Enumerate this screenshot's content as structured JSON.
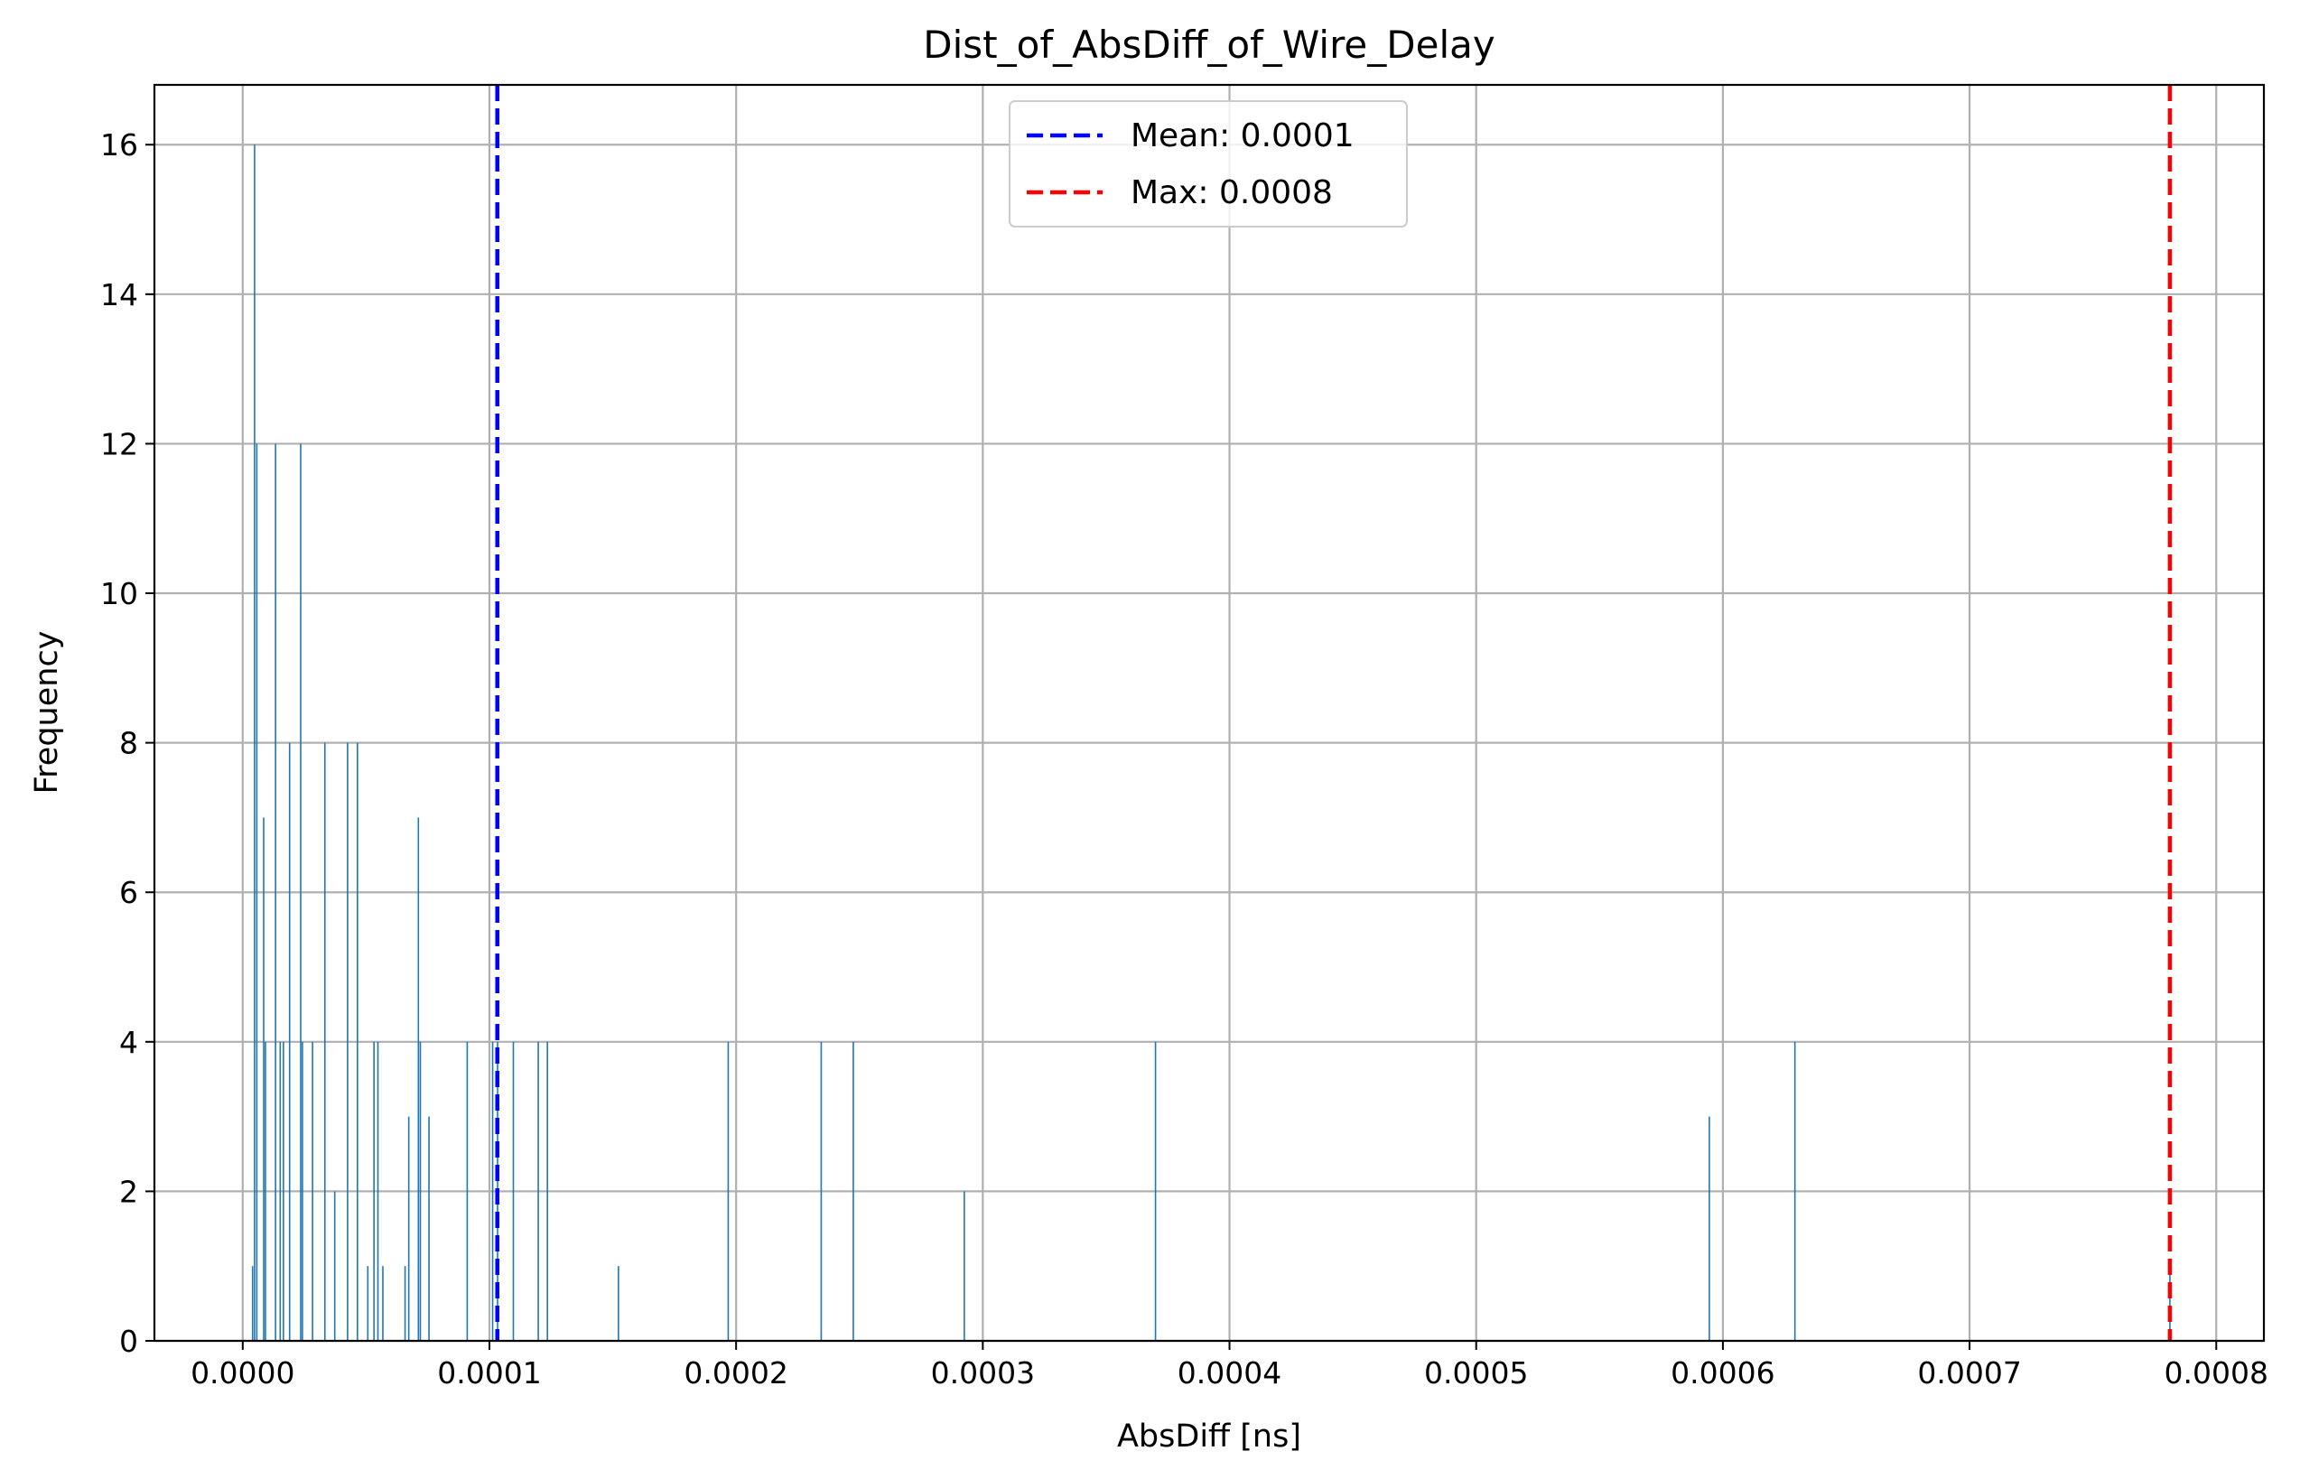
{
  "chart_data": {
    "type": "bar",
    "title": "Dist_of_AbsDiff_of_Wire_Delay",
    "xlabel": "AbsDiff [ns]",
    "ylabel": "Frequency",
    "xlim": [
      -3.58e-05,
      0.0008193
    ],
    "ylim": [
      0,
      16.8
    ],
    "grid": true,
    "legend_position": "upper-center",
    "bar_color": "#1f77b4",
    "x_ticks": [
      {
        "value": 0.0,
        "label": "0.0000"
      },
      {
        "value": 0.0001,
        "label": "0.0001"
      },
      {
        "value": 0.0002,
        "label": "0.0002"
      },
      {
        "value": 0.0003,
        "label": "0.0003"
      },
      {
        "value": 0.0004,
        "label": "0.0004"
      },
      {
        "value": 0.0005,
        "label": "0.0005"
      },
      {
        "value": 0.0006,
        "label": "0.0006"
      },
      {
        "value": 0.0007,
        "label": "0.0007"
      },
      {
        "value": 0.0008,
        "label": "0.0008"
      }
    ],
    "y_ticks": [
      {
        "value": 0,
        "label": "0"
      },
      {
        "value": 2,
        "label": "2"
      },
      {
        "value": 4,
        "label": "4"
      },
      {
        "value": 6,
        "label": "6"
      },
      {
        "value": 8,
        "label": "8"
      },
      {
        "value": 10,
        "label": "10"
      },
      {
        "value": 12,
        "label": "12"
      },
      {
        "value": 14,
        "label": "14"
      },
      {
        "value": 16,
        "label": "16"
      }
    ],
    "bars": [
      {
        "x": 4e-06,
        "count": 1
      },
      {
        "x": 4.8e-06,
        "count": 16
      },
      {
        "x": 5.7e-06,
        "count": 12
      },
      {
        "x": 8.5e-06,
        "count": 7
      },
      {
        "x": 9.2e-06,
        "count": 4
      },
      {
        "x": 1.33e-05,
        "count": 12
      },
      {
        "x": 1.52e-05,
        "count": 4
      },
      {
        "x": 1.65e-05,
        "count": 4
      },
      {
        "x": 1.9e-05,
        "count": 8
      },
      {
        "x": 2.35e-05,
        "count": 12
      },
      {
        "x": 2.42e-05,
        "count": 4
      },
      {
        "x": 2.83e-05,
        "count": 4
      },
      {
        "x": 3.33e-05,
        "count": 8
      },
      {
        "x": 3.73e-05,
        "count": 2
      },
      {
        "x": 4.25e-05,
        "count": 8
      },
      {
        "x": 4.65e-05,
        "count": 8
      },
      {
        "x": 5.07e-05,
        "count": 1
      },
      {
        "x": 5.32e-05,
        "count": 4
      },
      {
        "x": 5.48e-05,
        "count": 4
      },
      {
        "x": 5.68e-05,
        "count": 1
      },
      {
        "x": 6.58e-05,
        "count": 1
      },
      {
        "x": 6.73e-05,
        "count": 3
      },
      {
        "x": 7.12e-05,
        "count": 7
      },
      {
        "x": 7.2e-05,
        "count": 4
      },
      {
        "x": 7.55e-05,
        "count": 3
      },
      {
        "x": 9.1e-05,
        "count": 4
      },
      {
        "x": 0.0001013,
        "count": 4
      },
      {
        "x": 0.0001033,
        "count": 4
      },
      {
        "x": 0.0001097,
        "count": 4
      },
      {
        "x": 0.0001198,
        "count": 4
      },
      {
        "x": 0.0001235,
        "count": 4
      },
      {
        "x": 0.0001523,
        "count": 1
      },
      {
        "x": 0.0001968,
        "count": 4
      },
      {
        "x": 0.0002345,
        "count": 4
      },
      {
        "x": 0.0002475,
        "count": 4
      },
      {
        "x": 0.0002925,
        "count": 2
      },
      {
        "x": 0.00037,
        "count": 4
      },
      {
        "x": 0.0005945,
        "count": 3
      },
      {
        "x": 0.0006292,
        "count": 4
      },
      {
        "x": 0.0007812,
        "count": 1
      }
    ],
    "reference_lines": [
      {
        "name": "Mean: 0.0001",
        "x": 0.0001032,
        "color": "#0000ff"
      },
      {
        "name": "Max: 0.0008",
        "x": 0.0007812,
        "color": "#ff0000"
      }
    ]
  }
}
